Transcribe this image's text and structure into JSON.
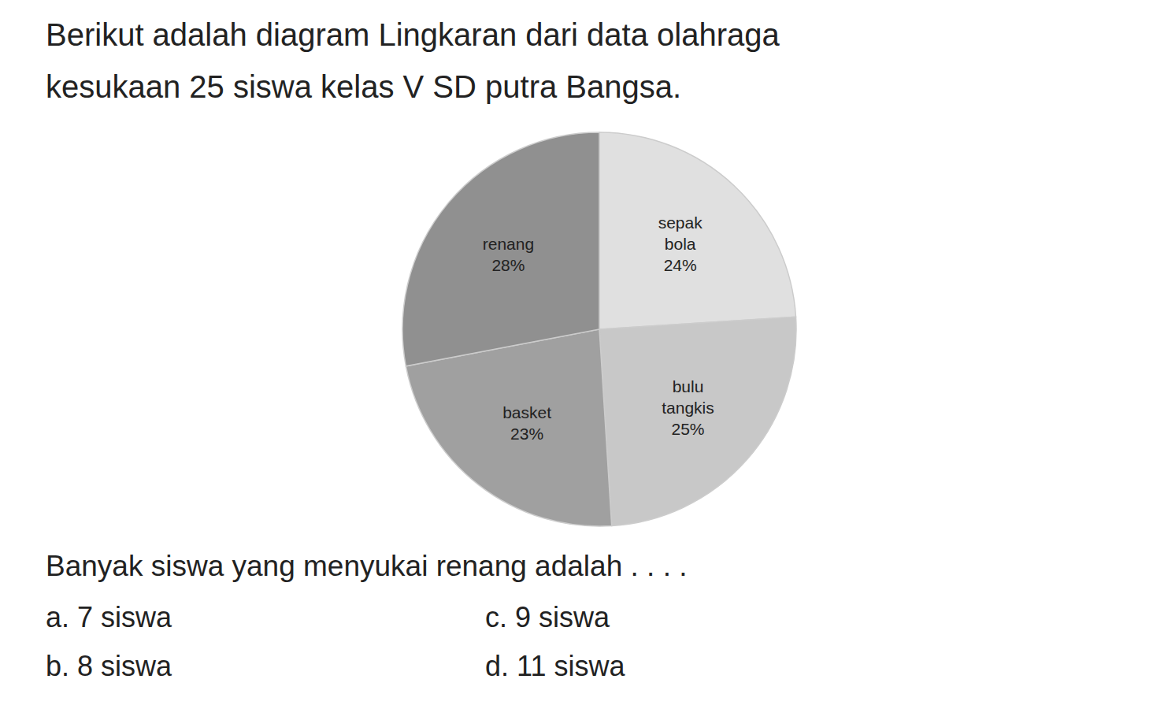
{
  "chart_data": {
    "type": "pie",
    "title": "Berikut adalah diagram Lingkaran dari data olahraga",
    "subtitle": "kesukaan 25 siswa kelas V SD putra Bangsa.",
    "categories": [
      "sepak\nbola",
      "bulu\ntangkis",
      "basket",
      "renang"
    ],
    "values": [
      24,
      25,
      23,
      28
    ],
    "value_labels": [
      "24%",
      "25%",
      "23%",
      "28%"
    ],
    "colors": [
      "#e0e0e0",
      "#c8c8c8",
      "#a0a0a0",
      "#909090"
    ],
    "data_labels": true,
    "annotations": [
      "Banyak siswa yang menyukai renang adalah . . . .",
      "a.  7 siswa",
      "b.  8 siswa",
      "c.  9 siswa",
      "d.  11 siswa"
    ]
  }
}
